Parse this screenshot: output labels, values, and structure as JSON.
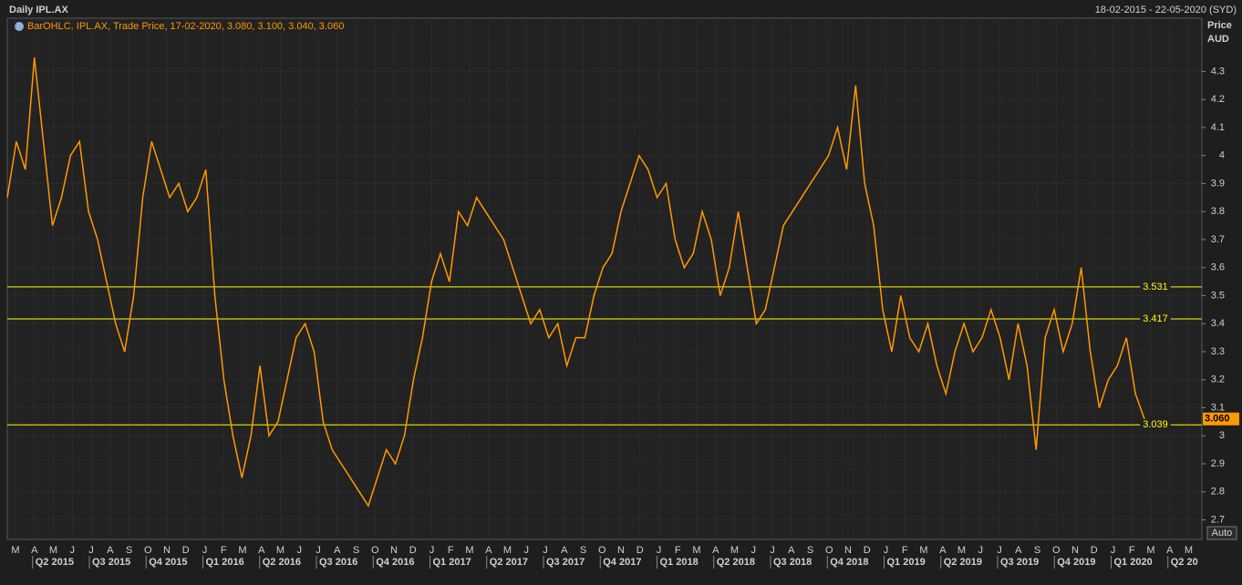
{
  "chart_data": {
    "type": "line",
    "title": "Daily IPL.AX",
    "date_range": "18-02-2015 - 22-05-2020 (SYD)",
    "legend_text": "BarOHLC, IPL.AX, Trade Price,  17-02-2020, 3.080, 3.100, 3.040, 3.060",
    "axis_label": "Price",
    "axis_unit": "AUD",
    "scale_mode": "Auto",
    "ylim": [
      2.63,
      4.49
    ],
    "yticks": [
      2.7,
      2.8,
      2.9,
      3,
      3.1,
      3.2,
      3.3,
      3.4,
      3.5,
      3.6,
      3.7,
      3.8,
      3.9,
      4,
      4.1,
      4.2,
      4.3
    ],
    "grid": true,
    "x_month_labels": [
      "M",
      "A",
      "M",
      "J",
      "J",
      "A",
      "S",
      "O",
      "N",
      "D",
      "J",
      "F",
      "M",
      "A",
      "M",
      "J",
      "J",
      "A",
      "S",
      "O",
      "N",
      "D",
      "J",
      "F",
      "M",
      "A",
      "M",
      "J",
      "J",
      "A",
      "S",
      "O",
      "N",
      "D",
      "J",
      "F",
      "M",
      "A",
      "M",
      "J",
      "J",
      "A",
      "S",
      "O",
      "N",
      "D",
      "J",
      "F",
      "M",
      "A",
      "M",
      "J",
      "J",
      "A",
      "S",
      "O",
      "N",
      "D",
      "J",
      "F",
      "M",
      "A",
      "M"
    ],
    "x_quarter_labels": [
      "Q2 2015",
      "Q3 2015",
      "Q4 2015",
      "Q1 2016",
      "Q2 2016",
      "Q3 2016",
      "Q4 2016",
      "Q1 2017",
      "Q2 2017",
      "Q3 2017",
      "Q4 2017",
      "Q1 2018",
      "Q2 2018",
      "Q3 2018",
      "Q4 2018",
      "Q1 2019",
      "Q2 2019",
      "Q3 2019",
      "Q4 2019",
      "Q1 2020",
      "Q2 20"
    ],
    "series": [
      {
        "name": "IPL.AX",
        "color": "#ff9900",
        "values": [
          3.85,
          4.05,
          3.95,
          4.35,
          4.05,
          3.75,
          3.85,
          4.0,
          4.05,
          3.8,
          3.7,
          3.55,
          3.4,
          3.3,
          3.5,
          3.85,
          4.05,
          3.95,
          3.85,
          3.9,
          3.8,
          3.85,
          3.95,
          3.5,
          3.2,
          3.0,
          2.85,
          3.0,
          3.25,
          3.0,
          3.05,
          3.2,
          3.35,
          3.4,
          3.3,
          3.05,
          2.95,
          2.9,
          2.85,
          2.8,
          2.75,
          2.85,
          2.95,
          2.9,
          3.0,
          3.2,
          3.35,
          3.55,
          3.65,
          3.55,
          3.8,
          3.75,
          3.85,
          3.8,
          3.75,
          3.7,
          3.6,
          3.5,
          3.4,
          3.45,
          3.35,
          3.4,
          3.25,
          3.35,
          3.35,
          3.5,
          3.6,
          3.65,
          3.8,
          3.9,
          4.0,
          3.95,
          3.85,
          3.9,
          3.7,
          3.6,
          3.65,
          3.8,
          3.7,
          3.5,
          3.6,
          3.8,
          3.6,
          3.4,
          3.45,
          3.6,
          3.75,
          3.8,
          3.85,
          3.9,
          3.95,
          4.0,
          4.1,
          3.95,
          4.25,
          3.9,
          3.75,
          3.45,
          3.3,
          3.5,
          3.35,
          3.3,
          3.4,
          3.25,
          3.15,
          3.3,
          3.4,
          3.3,
          3.35,
          3.45,
          3.35,
          3.2,
          3.4,
          3.25,
          2.95,
          3.35,
          3.45,
          3.3,
          3.4,
          3.6,
          3.3,
          3.1,
          3.2,
          3.25,
          3.35,
          3.15,
          3.06
        ]
      }
    ],
    "levels": [
      3.531,
      3.417,
      3.039
    ],
    "level_color": "#ffff00",
    "last_price": {
      "value": 3.06,
      "label": "3.060"
    }
  }
}
